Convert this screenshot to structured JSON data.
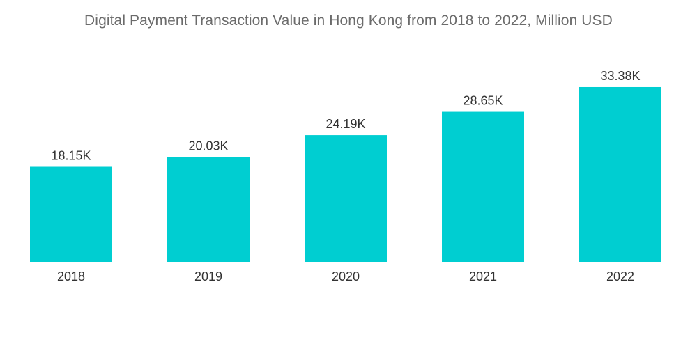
{
  "chart_data": {
    "type": "bar",
    "title": "Digital Payment Transaction Value in Hong Kong from 2018 to 2022, Million USD",
    "xlabel": "",
    "ylabel": "",
    "categories": [
      "2018",
      "2019",
      "2020",
      "2021",
      "2022"
    ],
    "values": [
      18150,
      20030,
      24190,
      28650,
      33380
    ],
    "value_labels": [
      "18.15K",
      "20.03K",
      "24.19K",
      "28.65K",
      "33.38K"
    ],
    "ylim": [
      0,
      50000
    ],
    "grid": false,
    "legend": "none",
    "bar_color": "#00CED1"
  }
}
